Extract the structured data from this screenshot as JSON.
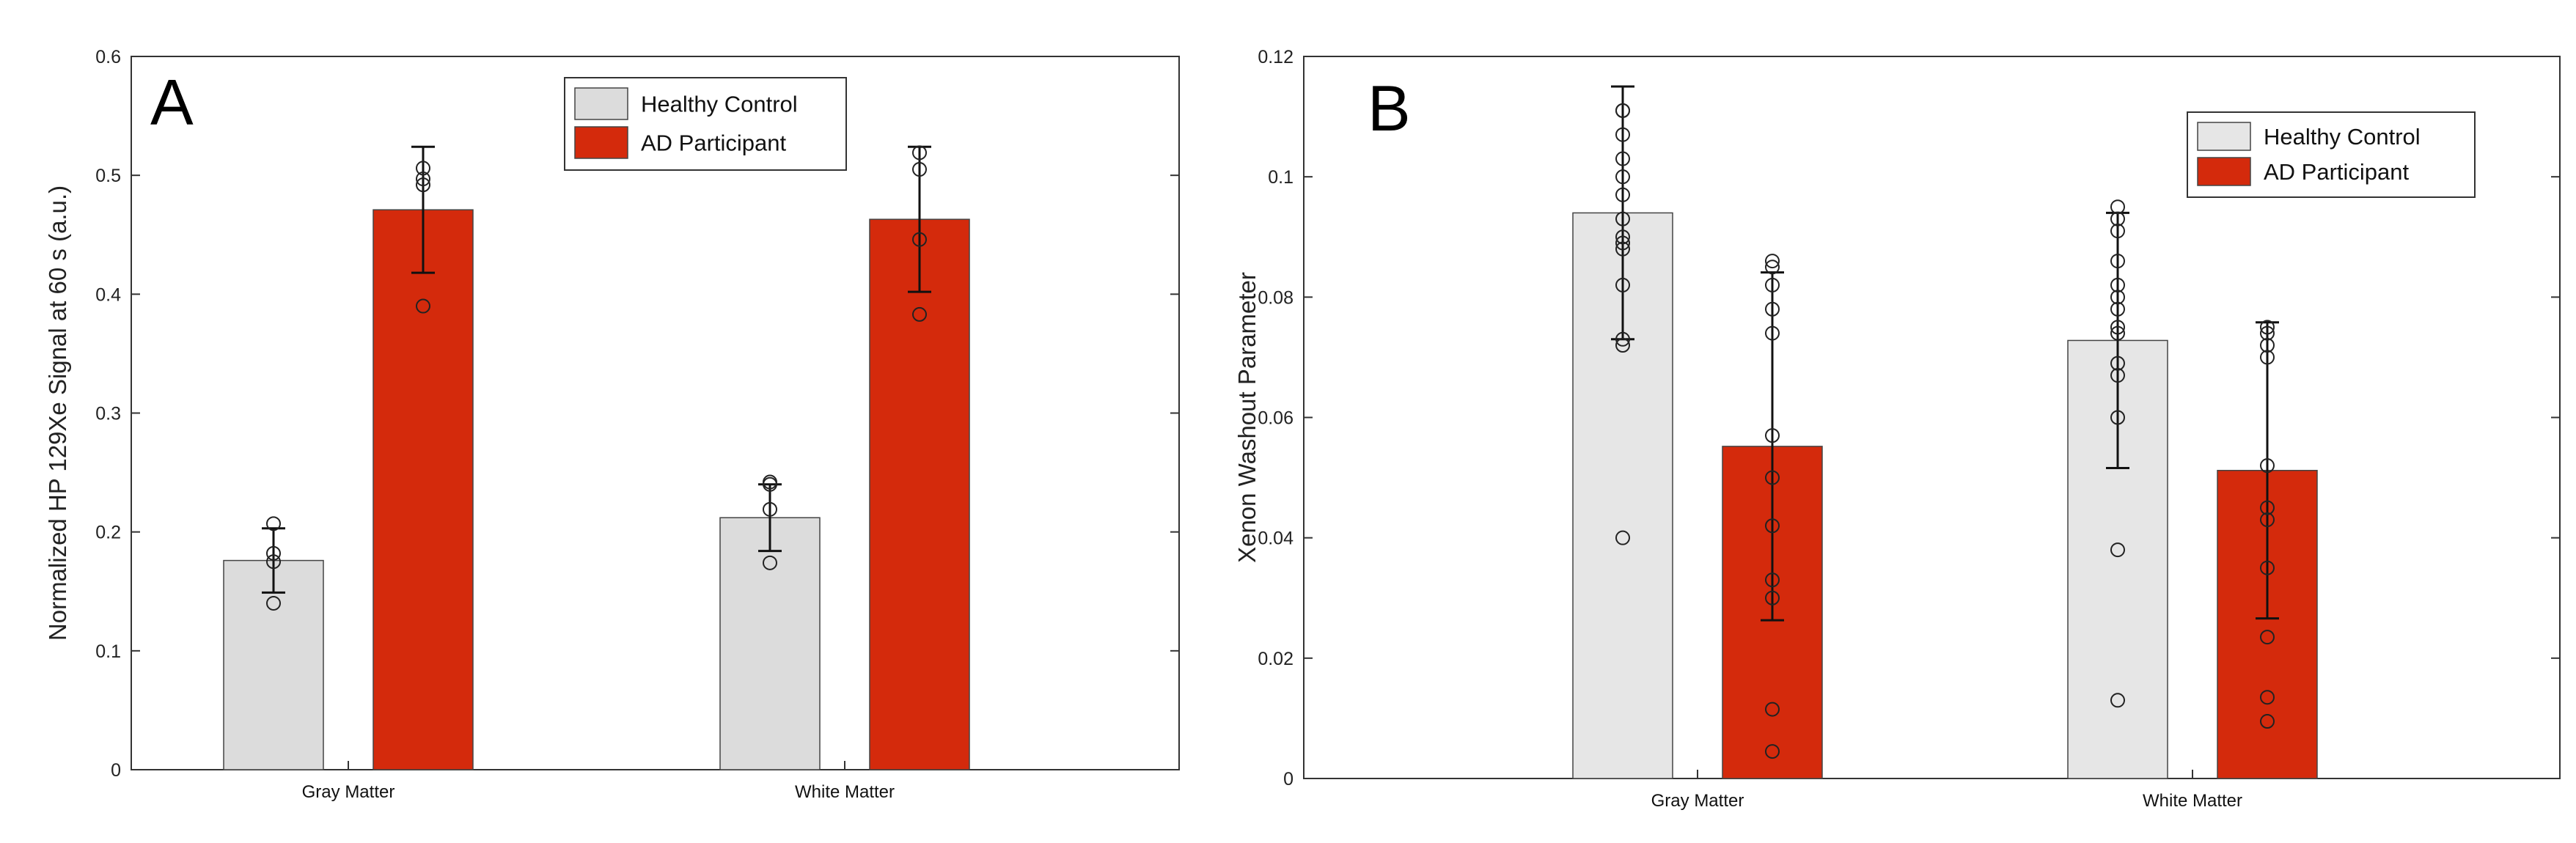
{
  "chart_data": [
    {
      "type": "bar",
      "panel_label": "A",
      "ylabel": "Normalized HP 129Xe Signal at 60 s (a.u.)",
      "xlabel": "",
      "ylim": [
        0,
        0.6
      ],
      "yticks": [
        0,
        0.1,
        0.2,
        0.3,
        0.4,
        0.5,
        0.6
      ],
      "ytick_labels": [
        "0",
        "0.1",
        "0.2",
        "0.3",
        "0.4",
        "0.5",
        "0.6"
      ],
      "categories": [
        "Gray Matter",
        "White Matter"
      ],
      "legend_position": "top-center",
      "series": [
        {
          "name": "Healthy Control",
          "color": "#dcdcdc",
          "values": [
            0.176,
            0.212
          ],
          "errors": [
            0.027,
            0.028
          ],
          "points": [
            [
              0.14,
              0.175,
              0.182,
              0.207
            ],
            [
              0.174,
              0.219,
              0.24,
              0.242
            ]
          ]
        },
        {
          "name": "AD Participant",
          "color": "#d42a0c",
          "values": [
            0.471,
            0.463
          ],
          "errors": [
            0.053,
            0.061
          ],
          "points": [
            [
              0.39,
              0.492,
              0.497,
              0.506
            ],
            [
              0.383,
              0.446,
              0.505,
              0.519
            ]
          ]
        }
      ]
    },
    {
      "type": "bar",
      "panel_label": "B",
      "ylabel": "Xenon Washout Parameter",
      "xlabel": "",
      "ylim": [
        0,
        0.12
      ],
      "yticks": [
        0,
        0.02,
        0.04,
        0.06,
        0.08,
        0.1,
        0.12
      ],
      "ytick_labels": [
        "0",
        "0.02",
        "0.04",
        "0.06",
        "0.08",
        "0.1",
        "0.12"
      ],
      "categories": [
        "Gray Matter",
        "White Matter"
      ],
      "legend_position": "top-right",
      "series": [
        {
          "name": "Healthy Control",
          "color": "#e6e6e6",
          "values": [
            0.094,
            0.0728
          ],
          "errors": [
            0.021,
            0.0212
          ],
          "points": [
            [
              0.04,
              0.072,
              0.073,
              0.082,
              0.088,
              0.089,
              0.09,
              0.093,
              0.097,
              0.1,
              0.103,
              0.107,
              0.111,
              0.111
            ],
            [
              0.013,
              0.038,
              0.06,
              0.067,
              0.069,
              0.074,
              0.075,
              0.078,
              0.08,
              0.082,
              0.086,
              0.091,
              0.093,
              0.095
            ]
          ]
        },
        {
          "name": "AD Participant",
          "color": "#d42a0c",
          "values": [
            0.0552,
            0.0512
          ],
          "errors": [
            0.0289,
            0.0246
          ],
          "points": [
            [
              0.0045,
              0.0115,
              0.03,
              0.033,
              0.042,
              0.05,
              0.057,
              0.074,
              0.078,
              0.082,
              0.085,
              0.086
            ],
            [
              0.0095,
              0.0135,
              0.0235,
              0.035,
              0.043,
              0.045,
              0.052,
              0.07,
              0.072,
              0.074,
              0.075
            ]
          ]
        }
      ]
    }
  ]
}
